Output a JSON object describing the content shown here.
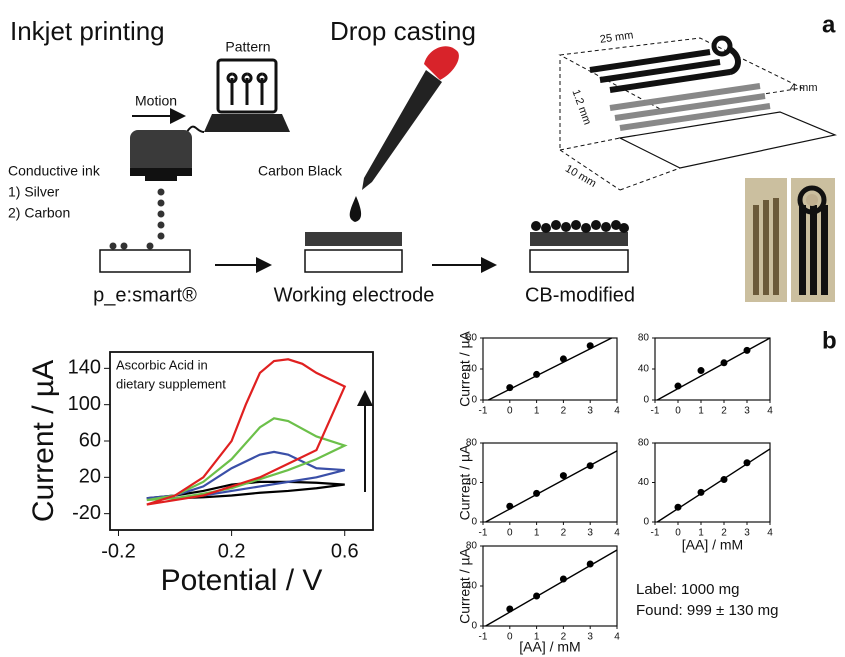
{
  "panel_a": {
    "label": "a",
    "title_left": "Inkjet printing",
    "title_right": "Drop casting",
    "pattern": "Pattern",
    "motion": "Motion",
    "ink": [
      "Conductive ink",
      "1) Silver",
      "2) Carbon"
    ],
    "carbon_black": "Carbon Black",
    "steps": [
      "p_e:smart®",
      "Working electrode",
      "CB-modified"
    ],
    "dims": [
      "25 mm",
      "1.2 mm",
      "4 mm",
      "10 mm"
    ]
  },
  "panel_b": {
    "label": "b",
    "result": [
      "Label: 1000 mg",
      "Found: 999 ± 130 mg"
    ]
  },
  "chart_data": [
    {
      "type": "line",
      "xlabel": "Potential / V",
      "ylabel": "Current / µA",
      "annotation": [
        "Ascorbic Acid in",
        "dietary supplement"
      ],
      "xlim": [
        -0.23,
        0.7
      ],
      "ylim": [
        -38,
        158
      ],
      "xticks": [
        -0.2,
        0.2,
        0.6
      ],
      "yticks": [
        -20,
        20,
        60,
        100,
        140
      ],
      "series": [
        {
          "color": "#000000",
          "x": [
            -0.1,
            0,
            0.1,
            0.2,
            0.3,
            0.4,
            0.5,
            0.6,
            0.5,
            0.4,
            0.3,
            0.2,
            0.1,
            0,
            -0.1
          ],
          "values": [
            -3,
            0,
            5,
            12,
            15,
            15,
            14,
            12,
            8,
            5,
            3,
            0,
            -2,
            -3,
            -3
          ]
        },
        {
          "color": "#3a4fa8",
          "x": [
            -0.1,
            0,
            0.1,
            0.2,
            0.3,
            0.35,
            0.4,
            0.5,
            0.6,
            0.5,
            0.4,
            0.3,
            0.2,
            0.1,
            0,
            -0.1
          ],
          "values": [
            -3,
            0,
            10,
            30,
            45,
            48,
            45,
            30,
            28,
            20,
            15,
            10,
            5,
            0,
            -3,
            -3
          ]
        },
        {
          "color": "#6cc04a",
          "x": [
            -0.1,
            0,
            0.1,
            0.2,
            0.3,
            0.35,
            0.4,
            0.5,
            0.6,
            0.5,
            0.4,
            0.3,
            0.2,
            0.1,
            0,
            -0.1
          ],
          "values": [
            -5,
            0,
            15,
            40,
            75,
            85,
            82,
            65,
            55,
            40,
            28,
            18,
            8,
            2,
            -3,
            -5
          ]
        },
        {
          "color": "#e02020",
          "x": [
            -0.1,
            0,
            0.1,
            0.2,
            0.25,
            0.3,
            0.35,
            0.4,
            0.45,
            0.5,
            0.6,
            0.5,
            0.4,
            0.3,
            0.2,
            0.1,
            0,
            -0.1
          ],
          "values": [
            -10,
            0,
            20,
            60,
            100,
            135,
            148,
            150,
            145,
            135,
            120,
            50,
            35,
            20,
            10,
            0,
            -5,
            -10
          ]
        }
      ]
    },
    {
      "type": "scatter",
      "ylabel": "Current / µA",
      "xlim": [
        -1,
        4
      ],
      "ylim": [
        0,
        80
      ],
      "xticks": [
        -1,
        0,
        1,
        2,
        3,
        4
      ],
      "yticks": [
        0,
        40,
        80
      ],
      "series": [
        {
          "color": "#000000",
          "mode": "markers",
          "x": [
            0,
            1,
            2,
            3
          ],
          "values": [
            16,
            33,
            53,
            70
          ]
        },
        {
          "color": "#000000",
          "mode": "line",
          "x": [
            -0.8,
            3.8
          ],
          "values": [
            0,
            80
          ]
        }
      ]
    },
    {
      "type": "scatter",
      "xlim": [
        -1,
        4
      ],
      "ylim": [
        0,
        80
      ],
      "xticks": [
        -1,
        0,
        1,
        2,
        3,
        4
      ],
      "yticks": [
        0,
        40,
        80
      ],
      "series": [
        {
          "color": "#000000",
          "mode": "markers",
          "x": [
            0,
            1,
            2,
            3
          ],
          "values": [
            18,
            38,
            48,
            64
          ]
        },
        {
          "color": "#000000",
          "mode": "line",
          "x": [
            -0.9,
            4
          ],
          "values": [
            0,
            80
          ]
        }
      ]
    },
    {
      "type": "scatter",
      "ylabel": "Current / µA",
      "xlim": [
        -1,
        4
      ],
      "ylim": [
        0,
        80
      ],
      "xticks": [
        -1,
        0,
        1,
        2,
        3,
        4
      ],
      "yticks": [
        0,
        40,
        80
      ],
      "series": [
        {
          "color": "#000000",
          "mode": "markers",
          "x": [
            0,
            1,
            2,
            3
          ],
          "values": [
            16,
            29,
            47,
            57
          ]
        },
        {
          "color": "#000000",
          "mode": "line",
          "x": [
            -0.9,
            4
          ],
          "values": [
            0,
            72
          ]
        }
      ]
    },
    {
      "type": "scatter",
      "xlabel": "[AA] / mM",
      "xlim": [
        -1,
        4
      ],
      "ylim": [
        0,
        80
      ],
      "xticks": [
        -1,
        0,
        1,
        2,
        3,
        4
      ],
      "yticks": [
        0,
        40,
        80
      ],
      "series": [
        {
          "color": "#000000",
          "mode": "markers",
          "x": [
            0,
            1,
            2,
            3
          ],
          "values": [
            15,
            30,
            43,
            60
          ]
        },
        {
          "color": "#000000",
          "mode": "line",
          "x": [
            -0.9,
            4
          ],
          "values": [
            0,
            74
          ]
        }
      ]
    },
    {
      "type": "scatter",
      "xlabel": "[AA] / mM",
      "ylabel": "Current / µA",
      "xlim": [
        -1,
        4
      ],
      "ylim": [
        0,
        80
      ],
      "xticks": [
        -1,
        0,
        1,
        2,
        3,
        4
      ],
      "yticks": [
        0,
        40,
        80
      ],
      "series": [
        {
          "color": "#000000",
          "mode": "markers",
          "x": [
            0,
            1,
            2,
            3
          ],
          "values": [
            17,
            30,
            47,
            62
          ]
        },
        {
          "color": "#000000",
          "mode": "line",
          "x": [
            -0.9,
            4
          ],
          "values": [
            0,
            76
          ]
        }
      ]
    }
  ]
}
